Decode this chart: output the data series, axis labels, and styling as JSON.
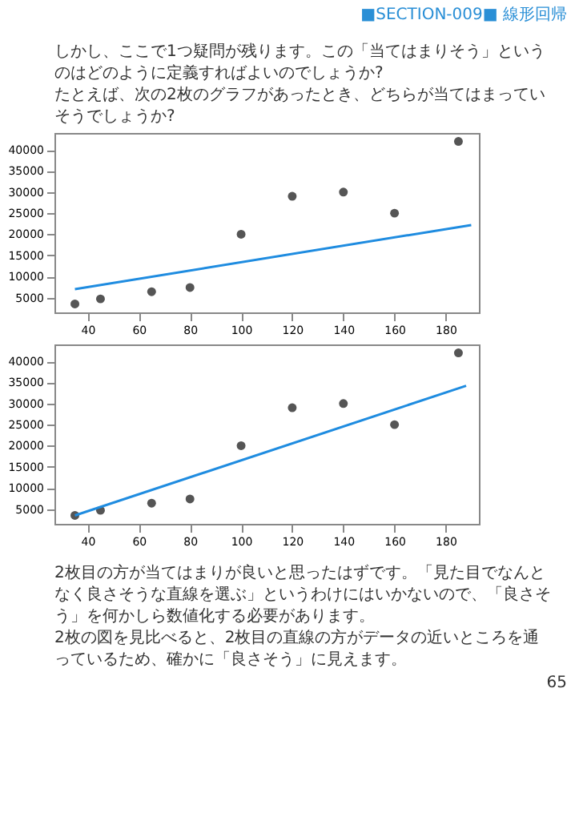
{
  "chart_data": [
    {
      "type": "scatter",
      "xlim": [
        27,
        193
      ],
      "ylim": [
        1500,
        44000
      ],
      "xticks": [
        40,
        60,
        80,
        100,
        120,
        140,
        160,
        180
      ],
      "yticks": [
        5000,
        10000,
        15000,
        20000,
        25000,
        30000,
        35000,
        40000
      ],
      "grid": false,
      "annotations": [
        "■SECTION-009■ 線形回帰",
        "しかし、ここで1つ疑問が残ります。この「当てはまりそう」というのはどのように定義すればよいのでしょうか?",
        "たとえば、次の2枚のグラフがあったとき、どちらが当てはまっていそうでしょうか?"
      ],
      "series": [
        {
          "type": "scatter",
          "marker": "circle",
          "color": "#555555",
          "x": [
            35,
            45,
            65,
            80,
            100,
            120,
            140,
            160,
            185
          ],
          "values": [
            3500,
            4700,
            6400,
            7400,
            20000,
            29000,
            30000,
            25000,
            42000
          ]
        },
        {
          "type": "line",
          "color": "#1f8ce0",
          "x": [
            35,
            190
          ],
          "values": [
            7000,
            22200
          ]
        }
      ]
    },
    {
      "type": "scatter",
      "xlim": [
        27,
        193
      ],
      "ylim": [
        1500,
        44000
      ],
      "xticks": [
        40,
        60,
        80,
        100,
        120,
        140,
        160,
        180
      ],
      "yticks": [
        5000,
        10000,
        15000,
        20000,
        25000,
        30000,
        35000,
        40000
      ],
      "grid": false,
      "annotations": [
        "2枚目の方が当てはまりが良いと思ったはずです。「見た目でなんとなく良さそうな直線を選ぶ」というわけにはいかないので、「良さそう」を何かしら数値化する必要があります。",
        "2枚の図を見比べると、2枚目の直線の方がデータの近いところを通っているため、確かに「良さそう」に見えます。",
        "65"
      ],
      "series": [
        {
          "type": "scatter",
          "marker": "circle",
          "color": "#555555",
          "x": [
            35,
            45,
            65,
            80,
            100,
            120,
            140,
            160,
            185
          ],
          "values": [
            3500,
            4700,
            6400,
            7400,
            20000,
            29000,
            30000,
            25000,
            42000
          ]
        },
        {
          "type": "line",
          "color": "#1f8ce0",
          "x": [
            35,
            188
          ],
          "values": [
            3500,
            34200
          ]
        }
      ]
    }
  ]
}
